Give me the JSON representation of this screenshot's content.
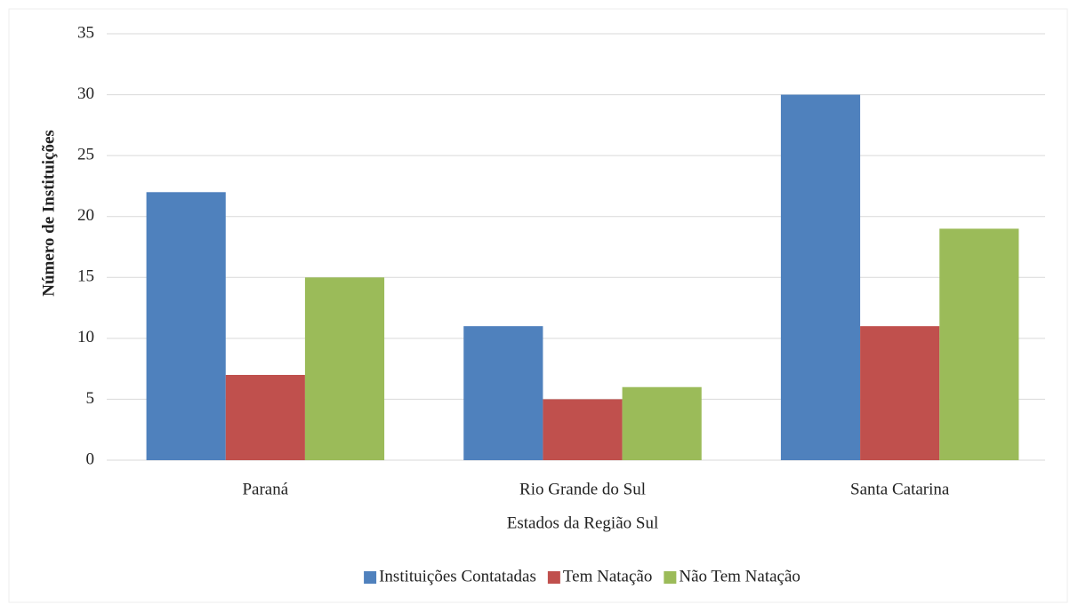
{
  "chart_data": {
    "type": "bar",
    "x_label": "Estados da Região Sul",
    "y_label": "Número de Instituições",
    "categories": [
      "Paraná",
      "Rio Grande do Sul",
      "Santa Catarina"
    ],
    "series": [
      {
        "name": "Instituições Contatadas",
        "color": "#4f81bd",
        "values": [
          22,
          11,
          30
        ]
      },
      {
        "name": "Tem Natação",
        "color": "#c0504d",
        "values": [
          7,
          5,
          11
        ]
      },
      {
        "name": "Não Tem Natação",
        "color": "#9bbb59",
        "values": [
          15,
          6,
          19
        ]
      }
    ],
    "ylim": [
      0,
      35
    ],
    "yticks": [
      0,
      5,
      10,
      15,
      20,
      25,
      30,
      35
    ],
    "grid": true,
    "legend": "bottom"
  }
}
